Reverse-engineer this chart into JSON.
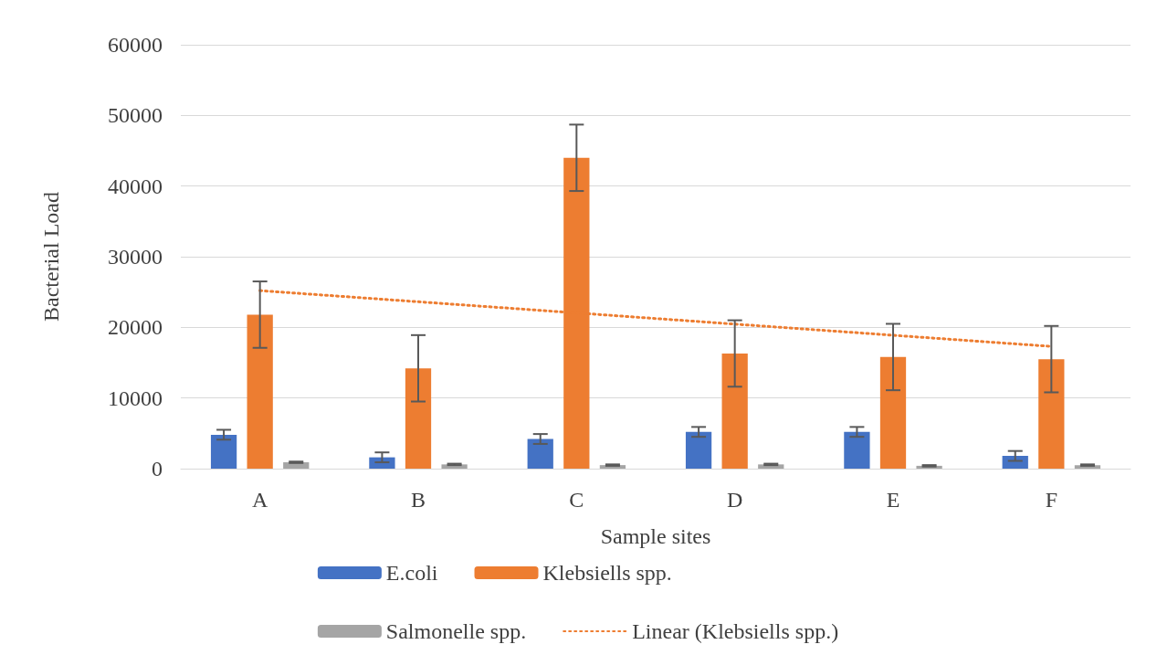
{
  "chart_data": {
    "type": "bar",
    "xlabel": "Sample sites",
    "ylabel": "Bacterial Load",
    "categories": [
      "A",
      "B",
      "C",
      "D",
      "E",
      "F"
    ],
    "series": [
      {
        "name": "E.coli",
        "color": "#4472c4",
        "values": [
          4800,
          1600,
          4200,
          5200,
          5200,
          1800
        ],
        "errors": [
          700,
          700,
          700,
          700,
          700,
          700
        ]
      },
      {
        "name": "Klebsiells spp.",
        "color": "#ed7d31",
        "values": [
          21800,
          14200,
          44000,
          16300,
          15800,
          15500
        ],
        "errors": [
          4700,
          4700,
          4700,
          4700,
          4700,
          4700
        ]
      },
      {
        "name": "Salmonelle spp.",
        "color": "#a5a5a5",
        "values": [
          900,
          600,
          500,
          600,
          400,
          500
        ],
        "errors": [
          100,
          100,
          100,
          100,
          100,
          100
        ]
      },
      {
        "name": "Linear (Klebsiells spp.)",
        "type": "line",
        "color": "#ed7d31",
        "x": [
          "A",
          "F"
        ],
        "values": [
          25200,
          17300
        ],
        "line_style": "dotted",
        "marker": "none"
      }
    ],
    "ylim": [
      0,
      60000
    ],
    "yticks": [
      0,
      10000,
      20000,
      30000,
      40000,
      50000,
      60000
    ],
    "grid": "y",
    "legend": "bottom"
  }
}
